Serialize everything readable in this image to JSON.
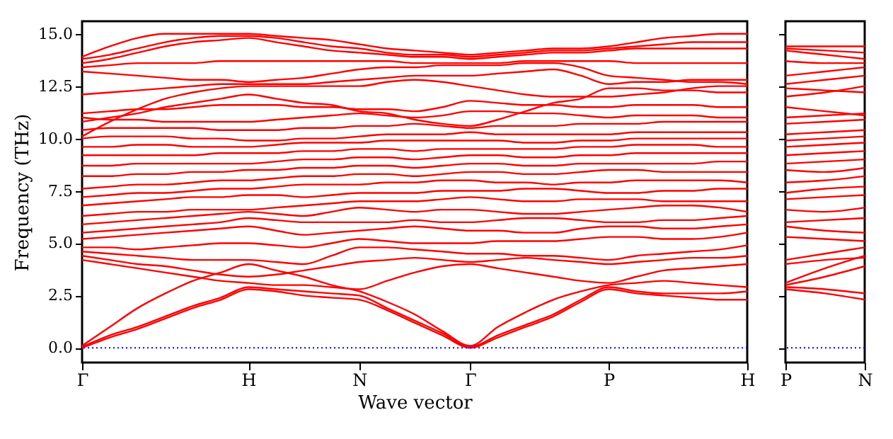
{
  "chart_data": [
    {
      "type": "line",
      "xlabel": "Wave vector",
      "ylabel": "Frequency (THz)",
      "categories": [
        "Γ",
        null,
        null,
        null,
        null,
        null,
        "H",
        null,
        null,
        null,
        "N",
        null,
        null,
        null,
        "Γ",
        null,
        null,
        null,
        null,
        "P",
        null,
        null,
        null,
        null,
        "H"
      ],
      "ylim": [
        -0.7,
        15.6
      ],
      "yticks": [
        {
          "value": 0,
          "label": "0.0"
        },
        {
          "value": 2.5,
          "label": "2.5"
        },
        {
          "value": 5,
          "label": "5.0"
        },
        {
          "value": 7.5,
          "label": "7.5"
        },
        {
          "value": 10,
          "label": "10.0"
        },
        {
          "value": 12.5,
          "label": "12.5"
        },
        {
          "value": 15,
          "label": "15.0"
        }
      ],
      "grid": false,
      "legend": false,
      "ref_lines": [
        {
          "axis": "y",
          "value": 0,
          "color": "#0000ff",
          "line_style": "dotted"
        }
      ],
      "series": [
        {
          "color": "#ff0000",
          "values": [
            0,
            0.5,
            0.9,
            1.4,
            1.9,
            2.3,
            2.8,
            2.7,
            2.5,
            2.4,
            2.3,
            1.8,
            1.2,
            0.6,
            0,
            0.5,
            1.0,
            1.5,
            2.2,
            2.8,
            2.6,
            2.5,
            2.4,
            2.3,
            2.3
          ]
        },
        {
          "color": "#ff0000",
          "values": [
            0.05,
            0.6,
            1.0,
            1.5,
            2.0,
            2.4,
            2.9,
            2.8,
            2.7,
            2.6,
            2.5,
            1.9,
            1.3,
            0.7,
            0.05,
            0.6,
            1.1,
            1.6,
            2.3,
            2.9,
            2.7,
            2.6,
            2.6,
            2.6,
            2.7
          ]
        },
        {
          "color": "#ff0000",
          "values": [
            0.1,
            1.0,
            1.9,
            2.6,
            3.2,
            3.6,
            4.0,
            3.7,
            3.4,
            3.0,
            2.7,
            2.2,
            1.6,
            0.8,
            0.1,
            1.0,
            1.7,
            2.3,
            2.7,
            3.0,
            3.1,
            3.2,
            3.1,
            3.0,
            2.9
          ]
        },
        {
          "color": "#ff0000",
          "values": [
            4.2,
            4.0,
            3.8,
            3.6,
            3.4,
            3.2,
            3.1,
            3.0,
            3.0,
            2.9,
            2.8,
            3.2,
            3.6,
            3.9,
            4.0,
            3.8,
            3.6,
            3.4,
            3.2,
            3.1,
            3.4,
            3.7,
            3.8,
            3.9,
            4.0
          ]
        },
        {
          "color": "#ff0000",
          "values": [
            4.4,
            4.2,
            4.0,
            3.9,
            3.7,
            3.5,
            3.4,
            3.5,
            3.7,
            3.9,
            4.1,
            4.2,
            4.3,
            4.2,
            4.1,
            4.2,
            4.3,
            4.2,
            4.1,
            4.0,
            4.1,
            4.2,
            4.3,
            4.3,
            4.4
          ]
        },
        {
          "color": "#ff0000",
          "values": [
            4.6,
            4.5,
            4.4,
            4.3,
            4.2,
            4.2,
            4.2,
            4.1,
            4.0,
            4.4,
            4.8,
            4.8,
            4.7,
            4.6,
            4.5,
            4.5,
            4.4,
            4.4,
            4.3,
            4.2,
            4.4,
            4.5,
            4.6,
            4.7,
            4.9
          ]
        },
        {
          "color": "#ff0000",
          "values": [
            4.8,
            4.8,
            4.7,
            4.8,
            4.9,
            5.0,
            5.0,
            4.9,
            4.8,
            5.0,
            5.2,
            5.1,
            5.0,
            5.0,
            5.0,
            5.1,
            5.1,
            5.1,
            5.2,
            5.3,
            5.3,
            5.2,
            5.2,
            5.3,
            5.5
          ]
        },
        {
          "color": "#ff0000",
          "values": [
            5.2,
            5.3,
            5.4,
            5.5,
            5.6,
            5.7,
            5.8,
            5.6,
            5.4,
            5.5,
            5.6,
            5.7,
            5.8,
            5.7,
            5.6,
            5.6,
            5.5,
            5.5,
            5.7,
            5.8,
            5.8,
            5.7,
            5.7,
            5.8,
            5.9
          ]
        },
        {
          "color": "#ff0000",
          "values": [
            5.5,
            5.6,
            5.7,
            5.8,
            5.9,
            6.0,
            6.2,
            6.1,
            6.0,
            6.0,
            6.0,
            6.0,
            6.1,
            6.0,
            6.0,
            6.1,
            6.2,
            6.2,
            6.1,
            6.0,
            6.0,
            6.1,
            6.1,
            6.2,
            6.3
          ]
        },
        {
          "color": "#ff0000",
          "values": [
            5.9,
            6.0,
            6.1,
            6.2,
            6.3,
            6.4,
            6.5,
            6.4,
            6.3,
            6.5,
            6.7,
            6.6,
            6.5,
            6.6,
            6.6,
            6.5,
            6.4,
            6.4,
            6.5,
            6.6,
            6.7,
            6.8,
            6.8,
            6.7,
            6.5
          ]
        },
        {
          "color": "#ff0000",
          "values": [
            6.3,
            6.4,
            6.5,
            6.5,
            6.6,
            6.6,
            6.6,
            6.7,
            6.8,
            6.9,
            7.0,
            7.0,
            7.0,
            7.1,
            7.2,
            7.1,
            7.0,
            7.0,
            7.1,
            7.1,
            7.1,
            7.0,
            7.0,
            7.0,
            7.0
          ]
        },
        {
          "color": "#ff0000",
          "values": [
            6.8,
            6.9,
            7.0,
            7.1,
            7.2,
            7.2,
            7.3,
            7.3,
            7.2,
            7.3,
            7.4,
            7.4,
            7.4,
            7.5,
            7.5,
            7.5,
            7.6,
            7.6,
            7.5,
            7.4,
            7.4,
            7.5,
            7.5,
            7.6,
            7.6
          ]
        },
        {
          "color": "#ff0000",
          "values": [
            7.2,
            7.3,
            7.4,
            7.4,
            7.5,
            7.6,
            7.6,
            7.7,
            7.8,
            7.8,
            7.8,
            7.9,
            7.9,
            8.0,
            8.0,
            7.9,
            7.9,
            7.8,
            7.9,
            7.9,
            8.0,
            8.0,
            8.0,
            8.0,
            7.9
          ]
        },
        {
          "color": "#ff0000",
          "values": [
            7.6,
            7.7,
            7.8,
            7.8,
            7.9,
            8.0,
            8.0,
            8.1,
            8.2,
            8.2,
            8.3,
            8.3,
            8.2,
            8.3,
            8.4,
            8.4,
            8.3,
            8.3,
            8.4,
            8.5,
            8.5,
            8.4,
            8.4,
            8.4,
            8.4
          ]
        },
        {
          "color": "#ff0000",
          "values": [
            8.2,
            8.2,
            8.3,
            8.3,
            8.4,
            8.4,
            8.5,
            8.5,
            8.6,
            8.6,
            8.7,
            8.7,
            8.6,
            8.7,
            8.8,
            8.8,
            8.7,
            8.7,
            8.8,
            8.8,
            8.8,
            8.8,
            8.8,
            8.9,
            8.9
          ]
        },
        {
          "color": "#ff0000",
          "values": [
            8.7,
            8.7,
            8.8,
            8.8,
            8.8,
            8.8,
            8.8,
            8.9,
            9.0,
            9.0,
            9.1,
            9.1,
            9.0,
            9.1,
            9.2,
            9.2,
            9.1,
            9.1,
            9.2,
            9.2,
            9.3,
            9.3,
            9.3,
            9.3,
            9.3
          ]
        },
        {
          "color": "#ff0000",
          "values": [
            9.2,
            9.2,
            9.2,
            9.2,
            9.2,
            9.3,
            9.3,
            9.3,
            9.4,
            9.4,
            9.5,
            9.5,
            9.4,
            9.5,
            9.5,
            9.5,
            9.5,
            9.5,
            9.6,
            9.6,
            9.7,
            9.7,
            9.7,
            9.6,
            9.6
          ]
        },
        {
          "color": "#ff0000",
          "values": [
            9.6,
            9.6,
            9.7,
            9.7,
            9.6,
            9.6,
            9.6,
            9.7,
            9.8,
            9.8,
            9.8,
            9.9,
            9.9,
            9.9,
            9.9,
            9.9,
            9.8,
            9.8,
            9.9,
            9.9,
            10.0,
            10.0,
            10.0,
            10.0,
            10.0
          ]
        },
        {
          "color": "#ff0000",
          "values": [
            10.0,
            10.1,
            10.1,
            10.1,
            10.0,
            10.0,
            9.9,
            9.9,
            10.0,
            10.0,
            10.1,
            10.2,
            10.2,
            10.2,
            10.3,
            10.2,
            10.2,
            10.2,
            10.2,
            10.2,
            10.3,
            10.3,
            10.3,
            10.3,
            10.3
          ]
        },
        {
          "color": "#ff0000",
          "values": [
            10.4,
            10.5,
            10.5,
            10.5,
            10.5,
            10.4,
            10.4,
            10.4,
            10.5,
            10.5,
            10.6,
            10.6,
            10.7,
            10.6,
            10.5,
            10.6,
            10.6,
            10.6,
            10.7,
            10.7,
            10.7,
            10.8,
            10.8,
            10.8,
            10.8
          ]
        },
        {
          "color": "#ff0000",
          "values": [
            10.8,
            11.0,
            11.2,
            11.5,
            11.7,
            11.9,
            12.1,
            11.9,
            11.7,
            11.6,
            11.3,
            11.2,
            10.9,
            10.7,
            10.6,
            10.9,
            11.3,
            11.7,
            11.9,
            12.4,
            12.4,
            12.3,
            12.3,
            12.2,
            12.2
          ]
        },
        {
          "color": "#ff0000",
          "values": [
            11.0,
            10.9,
            10.9,
            10.8,
            10.8,
            10.8,
            10.8,
            10.9,
            11.0,
            11.1,
            11.2,
            11.1,
            11.0,
            11.1,
            11.3,
            11.3,
            11.2,
            11.2,
            11.1,
            11.0,
            11.1,
            11.1,
            11.1,
            11.0,
            11.0
          ]
        },
        {
          "color": "#ff0000",
          "values": [
            11.2,
            11.3,
            11.4,
            11.4,
            11.5,
            11.6,
            11.6,
            11.6,
            11.5,
            11.5,
            11.4,
            11.4,
            11.3,
            11.5,
            11.8,
            11.7,
            11.6,
            11.6,
            11.5,
            11.5,
            11.6,
            11.6,
            11.6,
            11.5,
            11.5
          ]
        },
        {
          "color": "#ff0000",
          "values": [
            10.1,
            10.8,
            11.4,
            11.9,
            12.2,
            12.4,
            12.5,
            12.5,
            12.5,
            12.5,
            12.5,
            12.7,
            12.8,
            12.7,
            12.5,
            12.3,
            12.1,
            12.0,
            12.0,
            12.0,
            12.1,
            12.2,
            12.4,
            12.5,
            12.5
          ]
        },
        {
          "color": "#ff0000",
          "values": [
            12.1,
            12.2,
            12.3,
            12.4,
            12.5,
            12.6,
            12.6,
            12.6,
            12.6,
            12.7,
            12.8,
            12.9,
            13.0,
            13.0,
            13.0,
            13.1,
            13.2,
            13.3,
            13.0,
            12.6,
            12.7,
            12.7,
            12.8,
            12.8,
            12.8
          ]
        },
        {
          "color": "#ff0000",
          "values": [
            13.2,
            13.1,
            13.0,
            12.9,
            12.8,
            12.8,
            12.7,
            12.8,
            12.9,
            13.1,
            13.3,
            13.4,
            13.4,
            13.5,
            13.5,
            13.5,
            13.6,
            13.6,
            13.4,
            13.0,
            12.9,
            12.8,
            12.7,
            12.7,
            12.6
          ]
        },
        {
          "color": "#ff0000",
          "values": [
            13.4,
            13.5,
            13.6,
            13.6,
            13.6,
            13.7,
            13.7,
            13.7,
            13.7,
            13.7,
            13.7,
            13.7,
            13.6,
            13.6,
            13.6,
            13.6,
            13.7,
            13.7,
            13.7,
            13.7,
            13.6,
            13.6,
            13.6,
            13.6,
            13.6
          ]
        },
        {
          "color": "#ff0000",
          "values": [
            13.6,
            13.8,
            14.1,
            14.4,
            14.6,
            14.7,
            14.8,
            14.6,
            14.4,
            14.2,
            14.1,
            14.0,
            13.9,
            13.9,
            13.8,
            13.9,
            14.0,
            14.1,
            14.1,
            14.2,
            14.3,
            14.3,
            14.3,
            14.3,
            14.3
          ]
        },
        {
          "color": "#ff0000",
          "values": [
            13.8,
            14.0,
            14.3,
            14.6,
            14.8,
            14.9,
            14.9,
            14.8,
            14.6,
            14.4,
            14.3,
            14.1,
            14.0,
            14.0,
            13.9,
            14.0,
            14.1,
            14.2,
            14.2,
            14.3,
            14.4,
            14.5,
            14.6,
            14.6,
            14.6
          ]
        },
        {
          "color": "#ff0000",
          "values": [
            13.9,
            14.4,
            14.8,
            15.0,
            15.0,
            15.0,
            15.0,
            14.9,
            14.8,
            14.7,
            14.5,
            14.3,
            14.2,
            14.1,
            14.0,
            14.1,
            14.2,
            14.3,
            14.3,
            14.4,
            14.6,
            14.8,
            14.9,
            15.0,
            15.0
          ]
        }
      ]
    },
    {
      "type": "line",
      "categories": [
        "P",
        null,
        "N"
      ],
      "ylim": [
        -0.7,
        15.6
      ],
      "yticks": [
        0,
        2.5,
        5,
        7.5,
        10,
        12.5,
        15
      ],
      "tick_labels": "x",
      "grid": false,
      "legend": false,
      "ref_lines": [
        {
          "axis": "y",
          "value": 0,
          "color": "#0000ff",
          "line_style": "dotted"
        }
      ],
      "series": [
        {
          "color": "#ff0000",
          "values": [
            2.8,
            2.6,
            2.3
          ]
        },
        {
          "color": "#ff0000",
          "values": [
            2.9,
            2.8,
            2.6
          ]
        },
        {
          "color": "#ff0000",
          "values": [
            3.0,
            3.4,
            3.9
          ]
        },
        {
          "color": "#ff0000",
          "values": [
            3.1,
            3.8,
            4.4
          ]
        },
        {
          "color": "#ff0000",
          "values": [
            4.0,
            4.2,
            4.3
          ]
        },
        {
          "color": "#ff0000",
          "values": [
            4.2,
            4.5,
            4.8
          ]
        },
        {
          "color": "#ff0000",
          "values": [
            5.3,
            5.2,
            5.1
          ]
        },
        {
          "color": "#ff0000",
          "values": [
            5.8,
            5.6,
            5.5
          ]
        },
        {
          "color": "#ff0000",
          "values": [
            6.0,
            6.1,
            6.2
          ]
        },
        {
          "color": "#ff0000",
          "values": [
            6.6,
            6.5,
            6.7
          ]
        },
        {
          "color": "#ff0000",
          "values": [
            7.1,
            7.2,
            7.3
          ]
        },
        {
          "color": "#ff0000",
          "values": [
            7.4,
            7.6,
            7.7
          ]
        },
        {
          "color": "#ff0000",
          "values": [
            7.9,
            8.0,
            8.2
          ]
        },
        {
          "color": "#ff0000",
          "values": [
            8.5,
            8.4,
            8.6
          ]
        },
        {
          "color": "#ff0000",
          "values": [
            8.8,
            8.9,
            9.0
          ]
        },
        {
          "color": "#ff0000",
          "values": [
            9.2,
            9.3,
            9.4
          ]
        },
        {
          "color": "#ff0000",
          "values": [
            9.6,
            9.7,
            9.8
          ]
        },
        {
          "color": "#ff0000",
          "values": [
            9.9,
            10.0,
            10.1
          ]
        },
        {
          "color": "#ff0000",
          "values": [
            10.2,
            10.3,
            10.4
          ]
        },
        {
          "color": "#ff0000",
          "values": [
            10.7,
            10.8,
            10.9
          ]
        },
        {
          "color": "#ff0000",
          "values": [
            12.4,
            12.3,
            12.2
          ]
        },
        {
          "color": "#ff0000",
          "values": [
            11.0,
            11.1,
            11.2
          ]
        },
        {
          "color": "#ff0000",
          "values": [
            11.5,
            11.3,
            11.1
          ]
        },
        {
          "color": "#ff0000",
          "values": [
            12.0,
            12.2,
            12.5
          ]
        },
        {
          "color": "#ff0000",
          "values": [
            12.6,
            12.8,
            13.0
          ]
        },
        {
          "color": "#ff0000",
          "values": [
            13.0,
            13.2,
            13.4
          ]
        },
        {
          "color": "#ff0000",
          "values": [
            13.7,
            13.6,
            13.6
          ]
        },
        {
          "color": "#ff0000",
          "values": [
            14.2,
            14.0,
            13.8
          ]
        },
        {
          "color": "#ff0000",
          "values": [
            14.3,
            14.2,
            14.1
          ]
        },
        {
          "color": "#ff0000",
          "values": [
            14.4,
            14.4,
            14.4
          ]
        }
      ]
    }
  ]
}
